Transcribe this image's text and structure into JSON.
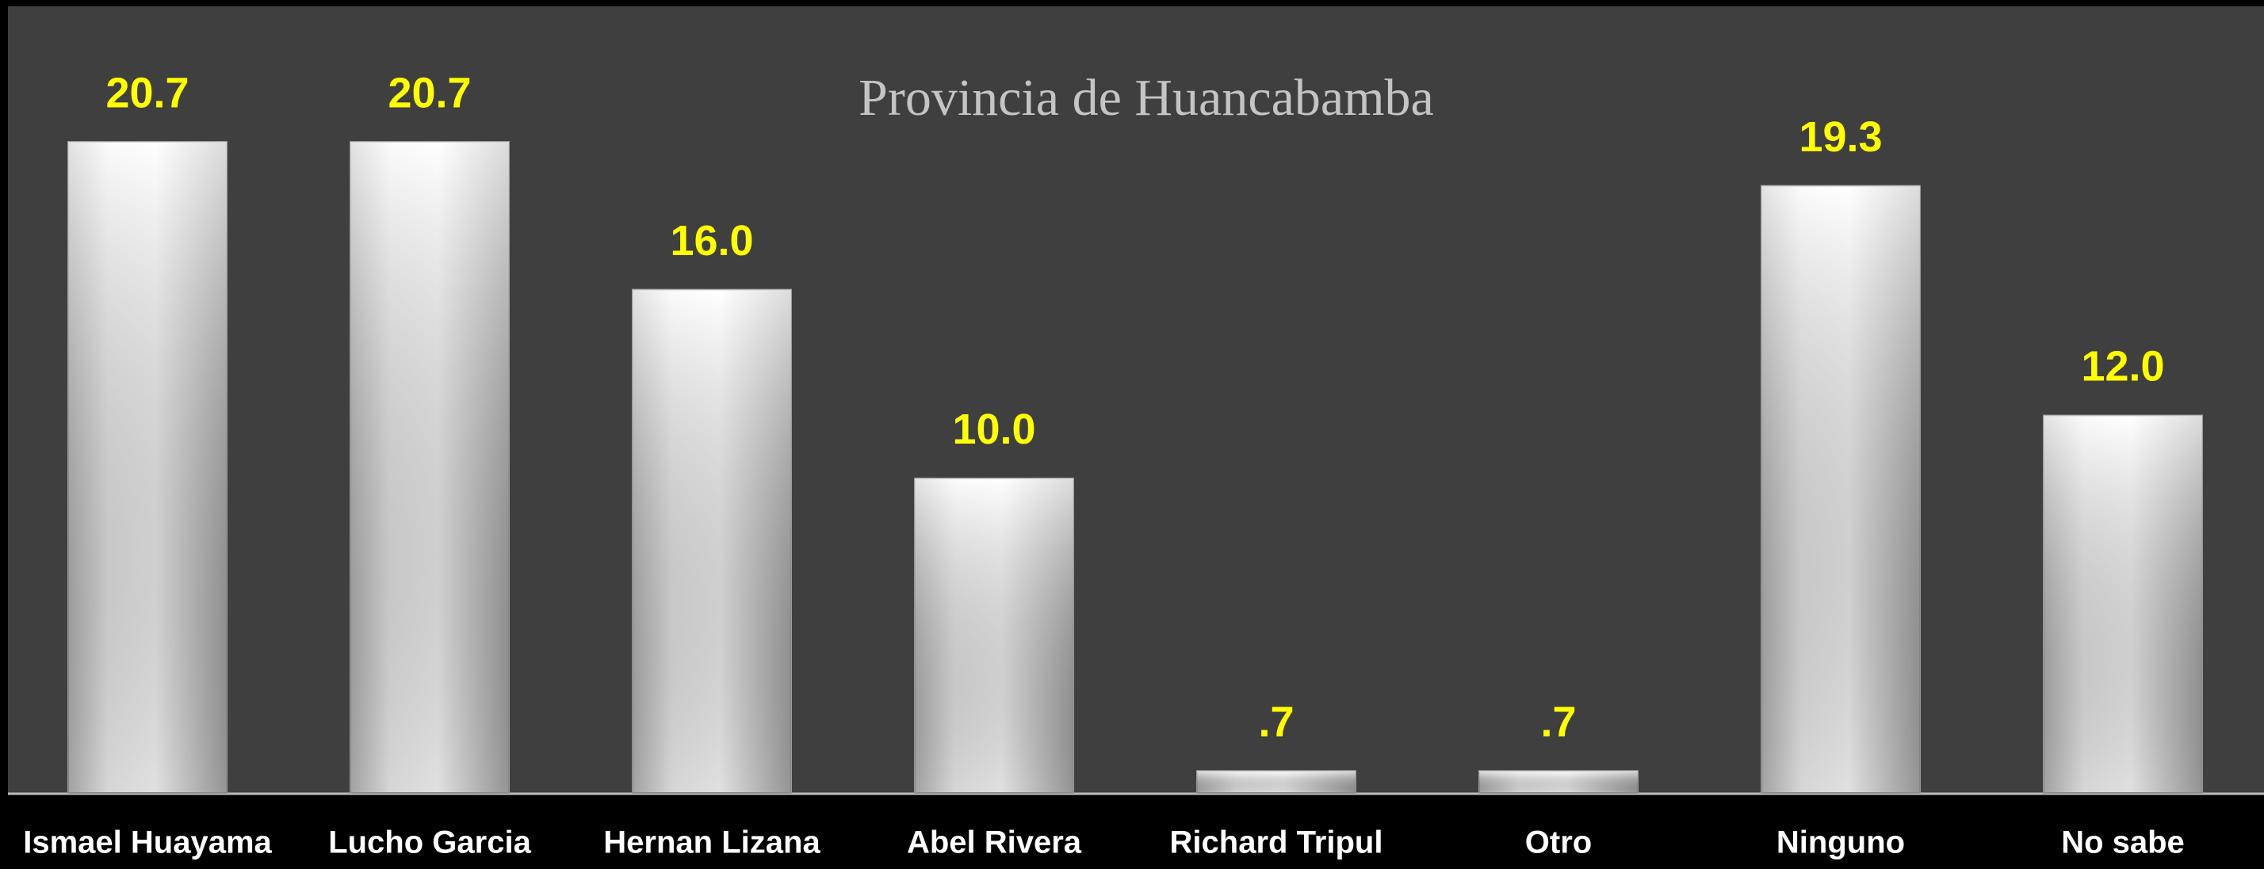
{
  "chart_data": {
    "type": "bar",
    "title": "Provincia de Huancabamba",
    "categories": [
      "Ismael Huayama",
      "Lucho Garcia",
      "Hernan Lizana",
      "Abel Rivera",
      "Richard Tripul",
      "Otro",
      "Ninguno",
      "No sabe"
    ],
    "values": [
      20.7,
      20.7,
      16.0,
      10.0,
      0.7,
      0.7,
      19.3,
      12.0
    ],
    "value_labels": [
      "20.7",
      "20.7",
      "16.0",
      "10.0",
      ".7",
      ".7",
      "19.3",
      "12.0"
    ],
    "color": "#ffffff",
    "grid": false
  }
}
